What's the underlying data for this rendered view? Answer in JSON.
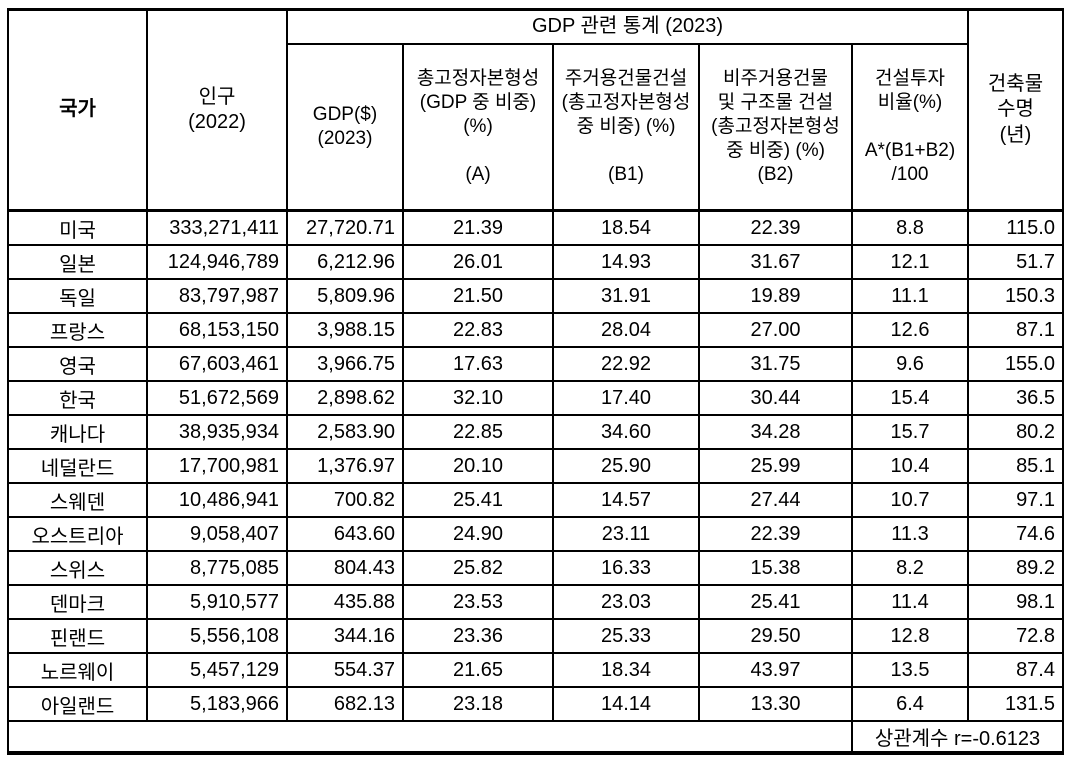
{
  "table": {
    "header": {
      "country": "국가",
      "population": "인구\n(2022)",
      "gdp_group": "GDP 관련 통계 (2023)",
      "gdp": "GDP($)\n(2023)",
      "gfcf": "총고정자본형성\n(GDP 중 비중)\n(%)\n\n(A)",
      "residential": "주거용건물건설\n(총고정자본형성\n중 비중) (%)\n\n(B1)",
      "nonresidential": "비주거용건물\n및 구조물 건설\n(총고정자본형성\n중 비중) (%)\n(B2)",
      "construction_ratio": "건설투자\n비율(%)\n\nA*(B1+B2)\n/100",
      "lifespan": "건축물\n수명\n(년)"
    },
    "rows": [
      {
        "country": "미국",
        "population": "333,271,411",
        "gdp": "27,720.71",
        "gfcf_a": "21.39",
        "residential_b1": "18.54",
        "nonresidential_b2": "22.39",
        "construction_ratio": "8.8",
        "lifespan": "115.0"
      },
      {
        "country": "일본",
        "population": "124,946,789",
        "gdp": "6,212.96",
        "gfcf_a": "26.01",
        "residential_b1": "14.93",
        "nonresidential_b2": "31.67",
        "construction_ratio": "12.1",
        "lifespan": "51.7"
      },
      {
        "country": "독일",
        "population": "83,797,987",
        "gdp": "5,809.96",
        "gfcf_a": "21.50",
        "residential_b1": "31.91",
        "nonresidential_b2": "19.89",
        "construction_ratio": "11.1",
        "lifespan": "150.3"
      },
      {
        "country": "프랑스",
        "population": "68,153,150",
        "gdp": "3,988.15",
        "gfcf_a": "22.83",
        "residential_b1": "28.04",
        "nonresidential_b2": "27.00",
        "construction_ratio": "12.6",
        "lifespan": "87.1"
      },
      {
        "country": "영국",
        "population": "67,603,461",
        "gdp": "3,966.75",
        "gfcf_a": "17.63",
        "residential_b1": "22.92",
        "nonresidential_b2": "31.75",
        "construction_ratio": "9.6",
        "lifespan": "155.0"
      },
      {
        "country": "한국",
        "population": "51,672,569",
        "gdp": "2,898.62",
        "gfcf_a": "32.10",
        "residential_b1": "17.40",
        "nonresidential_b2": "30.44",
        "construction_ratio": "15.4",
        "lifespan": "36.5"
      },
      {
        "country": "캐나다",
        "population": "38,935,934",
        "gdp": "2,583.90",
        "gfcf_a": "22.85",
        "residential_b1": "34.60",
        "nonresidential_b2": "34.28",
        "construction_ratio": "15.7",
        "lifespan": "80.2"
      },
      {
        "country": "네덜란드",
        "population": "17,700,981",
        "gdp": "1,376.97",
        "gfcf_a": "20.10",
        "residential_b1": "25.90",
        "nonresidential_b2": "25.99",
        "construction_ratio": "10.4",
        "lifespan": "85.1"
      },
      {
        "country": "스웨덴",
        "population": "10,486,941",
        "gdp": "700.82",
        "gfcf_a": "25.41",
        "residential_b1": "14.57",
        "nonresidential_b2": "27.44",
        "construction_ratio": "10.7",
        "lifespan": "97.1"
      },
      {
        "country": "오스트리아",
        "population": "9,058,407",
        "gdp": "643.60",
        "gfcf_a": "24.90",
        "residential_b1": "23.11",
        "nonresidential_b2": "22.39",
        "construction_ratio": "11.3",
        "lifespan": "74.6"
      },
      {
        "country": "스위스",
        "population": "8,775,085",
        "gdp": "804.43",
        "gfcf_a": "25.82",
        "residential_b1": "16.33",
        "nonresidential_b2": "15.38",
        "construction_ratio": "8.2",
        "lifespan": "89.2"
      },
      {
        "country": "덴마크",
        "population": "5,910,577",
        "gdp": "435.88",
        "gfcf_a": "23.53",
        "residential_b1": "23.03",
        "nonresidential_b2": "25.41",
        "construction_ratio": "11.4",
        "lifespan": "98.1"
      },
      {
        "country": "핀랜드",
        "population": "5,556,108",
        "gdp": "344.16",
        "gfcf_a": "23.36",
        "residential_b1": "25.33",
        "nonresidential_b2": "29.50",
        "construction_ratio": "12.8",
        "lifespan": "72.8"
      },
      {
        "country": "노르웨이",
        "population": "5,457,129",
        "gdp": "554.37",
        "gfcf_a": "21.65",
        "residential_b1": "18.34",
        "nonresidential_b2": "43.97",
        "construction_ratio": "13.5",
        "lifespan": "87.4"
      },
      {
        "country": "아일랜드",
        "population": "5,183,966",
        "gdp": "682.13",
        "gfcf_a": "23.18",
        "residential_b1": "14.14",
        "nonresidential_b2": "13.30",
        "construction_ratio": "6.4",
        "lifespan": "131.5"
      }
    ],
    "footer": {
      "correlation": "상관계수 r=-0.6123"
    }
  }
}
